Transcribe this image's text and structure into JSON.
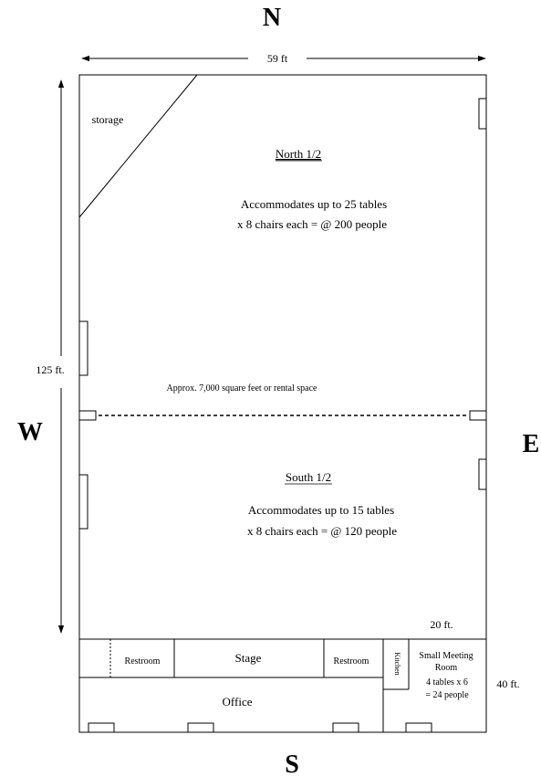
{
  "compass": {
    "north": "N",
    "south": "S",
    "west": "W",
    "east": "E"
  },
  "dimensions": {
    "width": "59 ft",
    "length": "125 ft.",
    "room_width": "20 ft.",
    "room_depth": "40 ft."
  },
  "storage": "storage",
  "north_half": {
    "title": "North 1/2",
    "line1": "Accommodates up to 25 tables",
    "line2": "x 8 chairs each = @ 200 people"
  },
  "divider_note": "Approx. 7,000 square feet or rental space",
  "south_half": {
    "title": "South 1/2",
    "line1": "Accommodates up to 15 tables",
    "line2": "x 8 chairs each = @ 120 people"
  },
  "rooms": {
    "restroom_left": "Restroom",
    "stage": "Stage",
    "restroom_right": "Restroom",
    "kitchen": "Kitchen",
    "meeting_line1": "Small Meeting",
    "meeting_line2": "Room",
    "meeting_line3": "4 tables x 6",
    "meeting_line4": "= 24 people",
    "office": "Office"
  }
}
